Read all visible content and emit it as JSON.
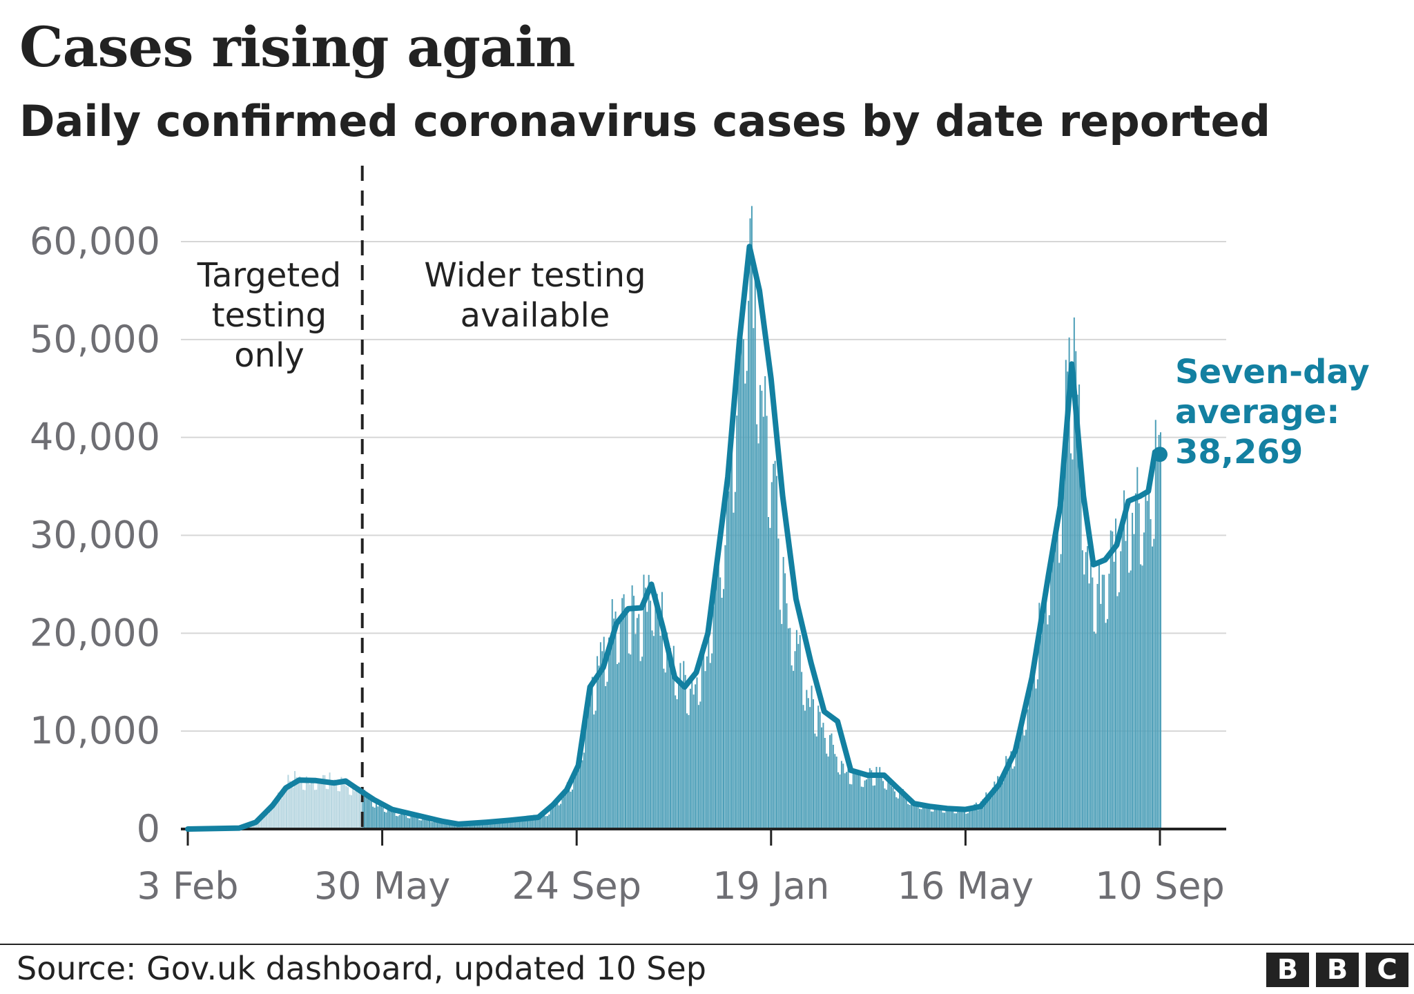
{
  "chart_data": {
    "type": "bar",
    "title": "Cases rising again",
    "subtitle": "Daily confirmed coronavirus cases by date reported",
    "source": "Source: Gov.uk dashboard, updated 10 Sep",
    "brand": [
      "B",
      "B",
      "C"
    ],
    "x_range": [
      "2020-02-03",
      "2021-09-10"
    ],
    "x_ticks": [
      {
        "date": "2020-02-03",
        "label": "3 Feb"
      },
      {
        "date": "2020-05-30",
        "label": "30 May"
      },
      {
        "date": "2020-09-24",
        "label": "24 Sep"
      },
      {
        "date": "2021-01-19",
        "label": "19 Jan"
      },
      {
        "date": "2021-05-16",
        "label": "16 May"
      },
      {
        "date": "2021-09-10",
        "label": "10 Sep"
      }
    ],
    "ylim": [
      0,
      60000
    ],
    "y_ticks": [
      {
        "value": 0,
        "label": "0"
      },
      {
        "value": 10000,
        "label": "10,000"
      },
      {
        "value": 20000,
        "label": "20,000"
      },
      {
        "value": 30000,
        "label": "30,000"
      },
      {
        "value": 40000,
        "label": "40,000"
      },
      {
        "value": 50000,
        "label": "50,000"
      },
      {
        "value": 60000,
        "label": "60,000"
      }
    ],
    "grid": true,
    "divider": {
      "date": "2020-05-18",
      "before_label": [
        "Targeted",
        "testing",
        "only"
      ],
      "after_label": [
        "Wider testing",
        "available"
      ]
    },
    "series": [
      {
        "kind": "bars",
        "points": [
          [
            "2020-02-03",
            0
          ],
          [
            "2020-03-01",
            50
          ],
          [
            "2020-03-10",
            400
          ],
          [
            "2020-03-20",
            1500
          ],
          [
            "2020-03-28",
            3500
          ],
          [
            "2020-04-05",
            5500
          ],
          [
            "2020-04-15",
            5000
          ],
          [
            "2020-04-25",
            5300
          ],
          [
            "2020-05-05",
            4900
          ],
          [
            "2020-05-15",
            4100
          ],
          [
            "2020-05-25",
            2800
          ],
          [
            "2020-06-05",
            1800
          ],
          [
            "2020-06-20",
            1200
          ],
          [
            "2020-07-05",
            700
          ],
          [
            "2020-07-20",
            600
          ],
          [
            "2020-08-05",
            800
          ],
          [
            "2020-08-20",
            1100
          ],
          [
            "2020-09-05",
            1500
          ],
          [
            "2020-09-15",
            3500
          ],
          [
            "2020-09-24",
            6000
          ],
          [
            "2020-10-02",
            14000
          ],
          [
            "2020-10-08",
            17000
          ],
          [
            "2020-10-15",
            21000
          ],
          [
            "2020-10-25",
            23000
          ],
          [
            "2020-11-01",
            22000
          ],
          [
            "2020-11-08",
            26000
          ],
          [
            "2020-11-15",
            21000
          ],
          [
            "2020-11-25",
            16000
          ],
          [
            "2020-12-02",
            14500
          ],
          [
            "2020-12-10",
            18000
          ],
          [
            "2020-12-18",
            28000
          ],
          [
            "2020-12-25",
            36000
          ],
          [
            "2021-01-01",
            55000
          ],
          [
            "2021-01-04",
            60000
          ],
          [
            "2021-01-08",
            58000
          ],
          [
            "2021-01-12",
            48000
          ],
          [
            "2021-01-19",
            38000
          ],
          [
            "2021-01-26",
            25000
          ],
          [
            "2021-02-02",
            20000
          ],
          [
            "2021-02-10",
            14000
          ],
          [
            "2021-02-18",
            11000
          ],
          [
            "2021-02-26",
            8000
          ],
          [
            "2021-03-05",
            6000
          ],
          [
            "2021-03-15",
            5500
          ],
          [
            "2021-03-25",
            5800
          ],
          [
            "2021-04-05",
            4000
          ],
          [
            "2021-04-15",
            2800
          ],
          [
            "2021-04-25",
            2300
          ],
          [
            "2021-05-05",
            2100
          ],
          [
            "2021-05-16",
            2000
          ],
          [
            "2021-05-25",
            2600
          ],
          [
            "2021-06-05",
            5500
          ],
          [
            "2021-06-15",
            8500
          ],
          [
            "2021-06-25",
            16000
          ],
          [
            "2021-07-05",
            28000
          ],
          [
            "2021-07-12",
            36000
          ],
          [
            "2021-07-17",
            50000
          ],
          [
            "2021-07-22",
            46000
          ],
          [
            "2021-07-28",
            27000
          ],
          [
            "2021-08-04",
            25000
          ],
          [
            "2021-08-12",
            29000
          ],
          [
            "2021-08-20",
            33000
          ],
          [
            "2021-08-27",
            35000
          ],
          [
            "2021-09-02",
            34000
          ],
          [
            "2021-09-07",
            39000
          ],
          [
            "2021-09-10",
            38000
          ]
        ]
      },
      {
        "kind": "line",
        "points": [
          [
            "2020-02-03",
            0
          ],
          [
            "2020-03-05",
            100
          ],
          [
            "2020-03-15",
            700
          ],
          [
            "2020-03-25",
            2400
          ],
          [
            "2020-04-02",
            4200
          ],
          [
            "2020-04-10",
            5000
          ],
          [
            "2020-04-20",
            4950
          ],
          [
            "2020-05-01",
            4700
          ],
          [
            "2020-05-08",
            4900
          ],
          [
            "2020-05-15",
            4100
          ],
          [
            "2020-05-25",
            3000
          ],
          [
            "2020-06-05",
            2000
          ],
          [
            "2020-06-20",
            1400
          ],
          [
            "2020-07-05",
            800
          ],
          [
            "2020-07-15",
            500
          ],
          [
            "2020-08-01",
            700
          ],
          [
            "2020-08-15",
            900
          ],
          [
            "2020-09-01",
            1200
          ],
          [
            "2020-09-10",
            2500
          ],
          [
            "2020-09-18",
            4000
          ],
          [
            "2020-09-25",
            6500
          ],
          [
            "2020-10-02",
            14500
          ],
          [
            "2020-10-10",
            16500
          ],
          [
            "2020-10-18",
            21000
          ],
          [
            "2020-10-25",
            22500
          ],
          [
            "2020-11-02",
            22600
          ],
          [
            "2020-11-08",
            25000
          ],
          [
            "2020-11-15",
            20500
          ],
          [
            "2020-11-22",
            15500
          ],
          [
            "2020-11-28",
            14500
          ],
          [
            "2020-12-05",
            16000
          ],
          [
            "2020-12-12",
            20000
          ],
          [
            "2020-12-18",
            28000
          ],
          [
            "2020-12-24",
            36000
          ],
          [
            "2020-12-31",
            50000
          ],
          [
            "2021-01-06",
            59500
          ],
          [
            "2021-01-12",
            55000
          ],
          [
            "2021-01-19",
            46000
          ],
          [
            "2021-01-26",
            34000
          ],
          [
            "2021-02-03",
            23500
          ],
          [
            "2021-02-12",
            17000
          ],
          [
            "2021-02-20",
            12000
          ],
          [
            "2021-02-28",
            11000
          ],
          [
            "2021-03-08",
            6000
          ],
          [
            "2021-03-18",
            5500
          ],
          [
            "2021-03-28",
            5500
          ],
          [
            "2021-04-05",
            4200
          ],
          [
            "2021-04-15",
            2600
          ],
          [
            "2021-04-25",
            2300
          ],
          [
            "2021-05-05",
            2100
          ],
          [
            "2021-05-16",
            2000
          ],
          [
            "2021-05-25",
            2300
          ],
          [
            "2021-06-05",
            4500
          ],
          [
            "2021-06-15",
            8000
          ],
          [
            "2021-06-25",
            15500
          ],
          [
            "2021-07-05",
            26000
          ],
          [
            "2021-07-12",
            33000
          ],
          [
            "2021-07-19",
            47500
          ],
          [
            "2021-07-26",
            34000
          ],
          [
            "2021-08-01",
            27000
          ],
          [
            "2021-08-08",
            27500
          ],
          [
            "2021-08-15",
            29000
          ],
          [
            "2021-08-22",
            33500
          ],
          [
            "2021-08-29",
            34000
          ],
          [
            "2021-09-03",
            34500
          ],
          [
            "2021-09-07",
            38500
          ],
          [
            "2021-09-10",
            38269
          ]
        ],
        "end_label": [
          "Seven-day",
          "average:",
          "38,269"
        ]
      }
    ],
    "colors": {
      "line": "#1380a1",
      "bars_before_divider": "#b7d6e0",
      "bars_after_divider": "#4d9fb8",
      "grid": "#d6d6d6",
      "axis": "#222222",
      "tick_text": "#6e6e73"
    }
  }
}
